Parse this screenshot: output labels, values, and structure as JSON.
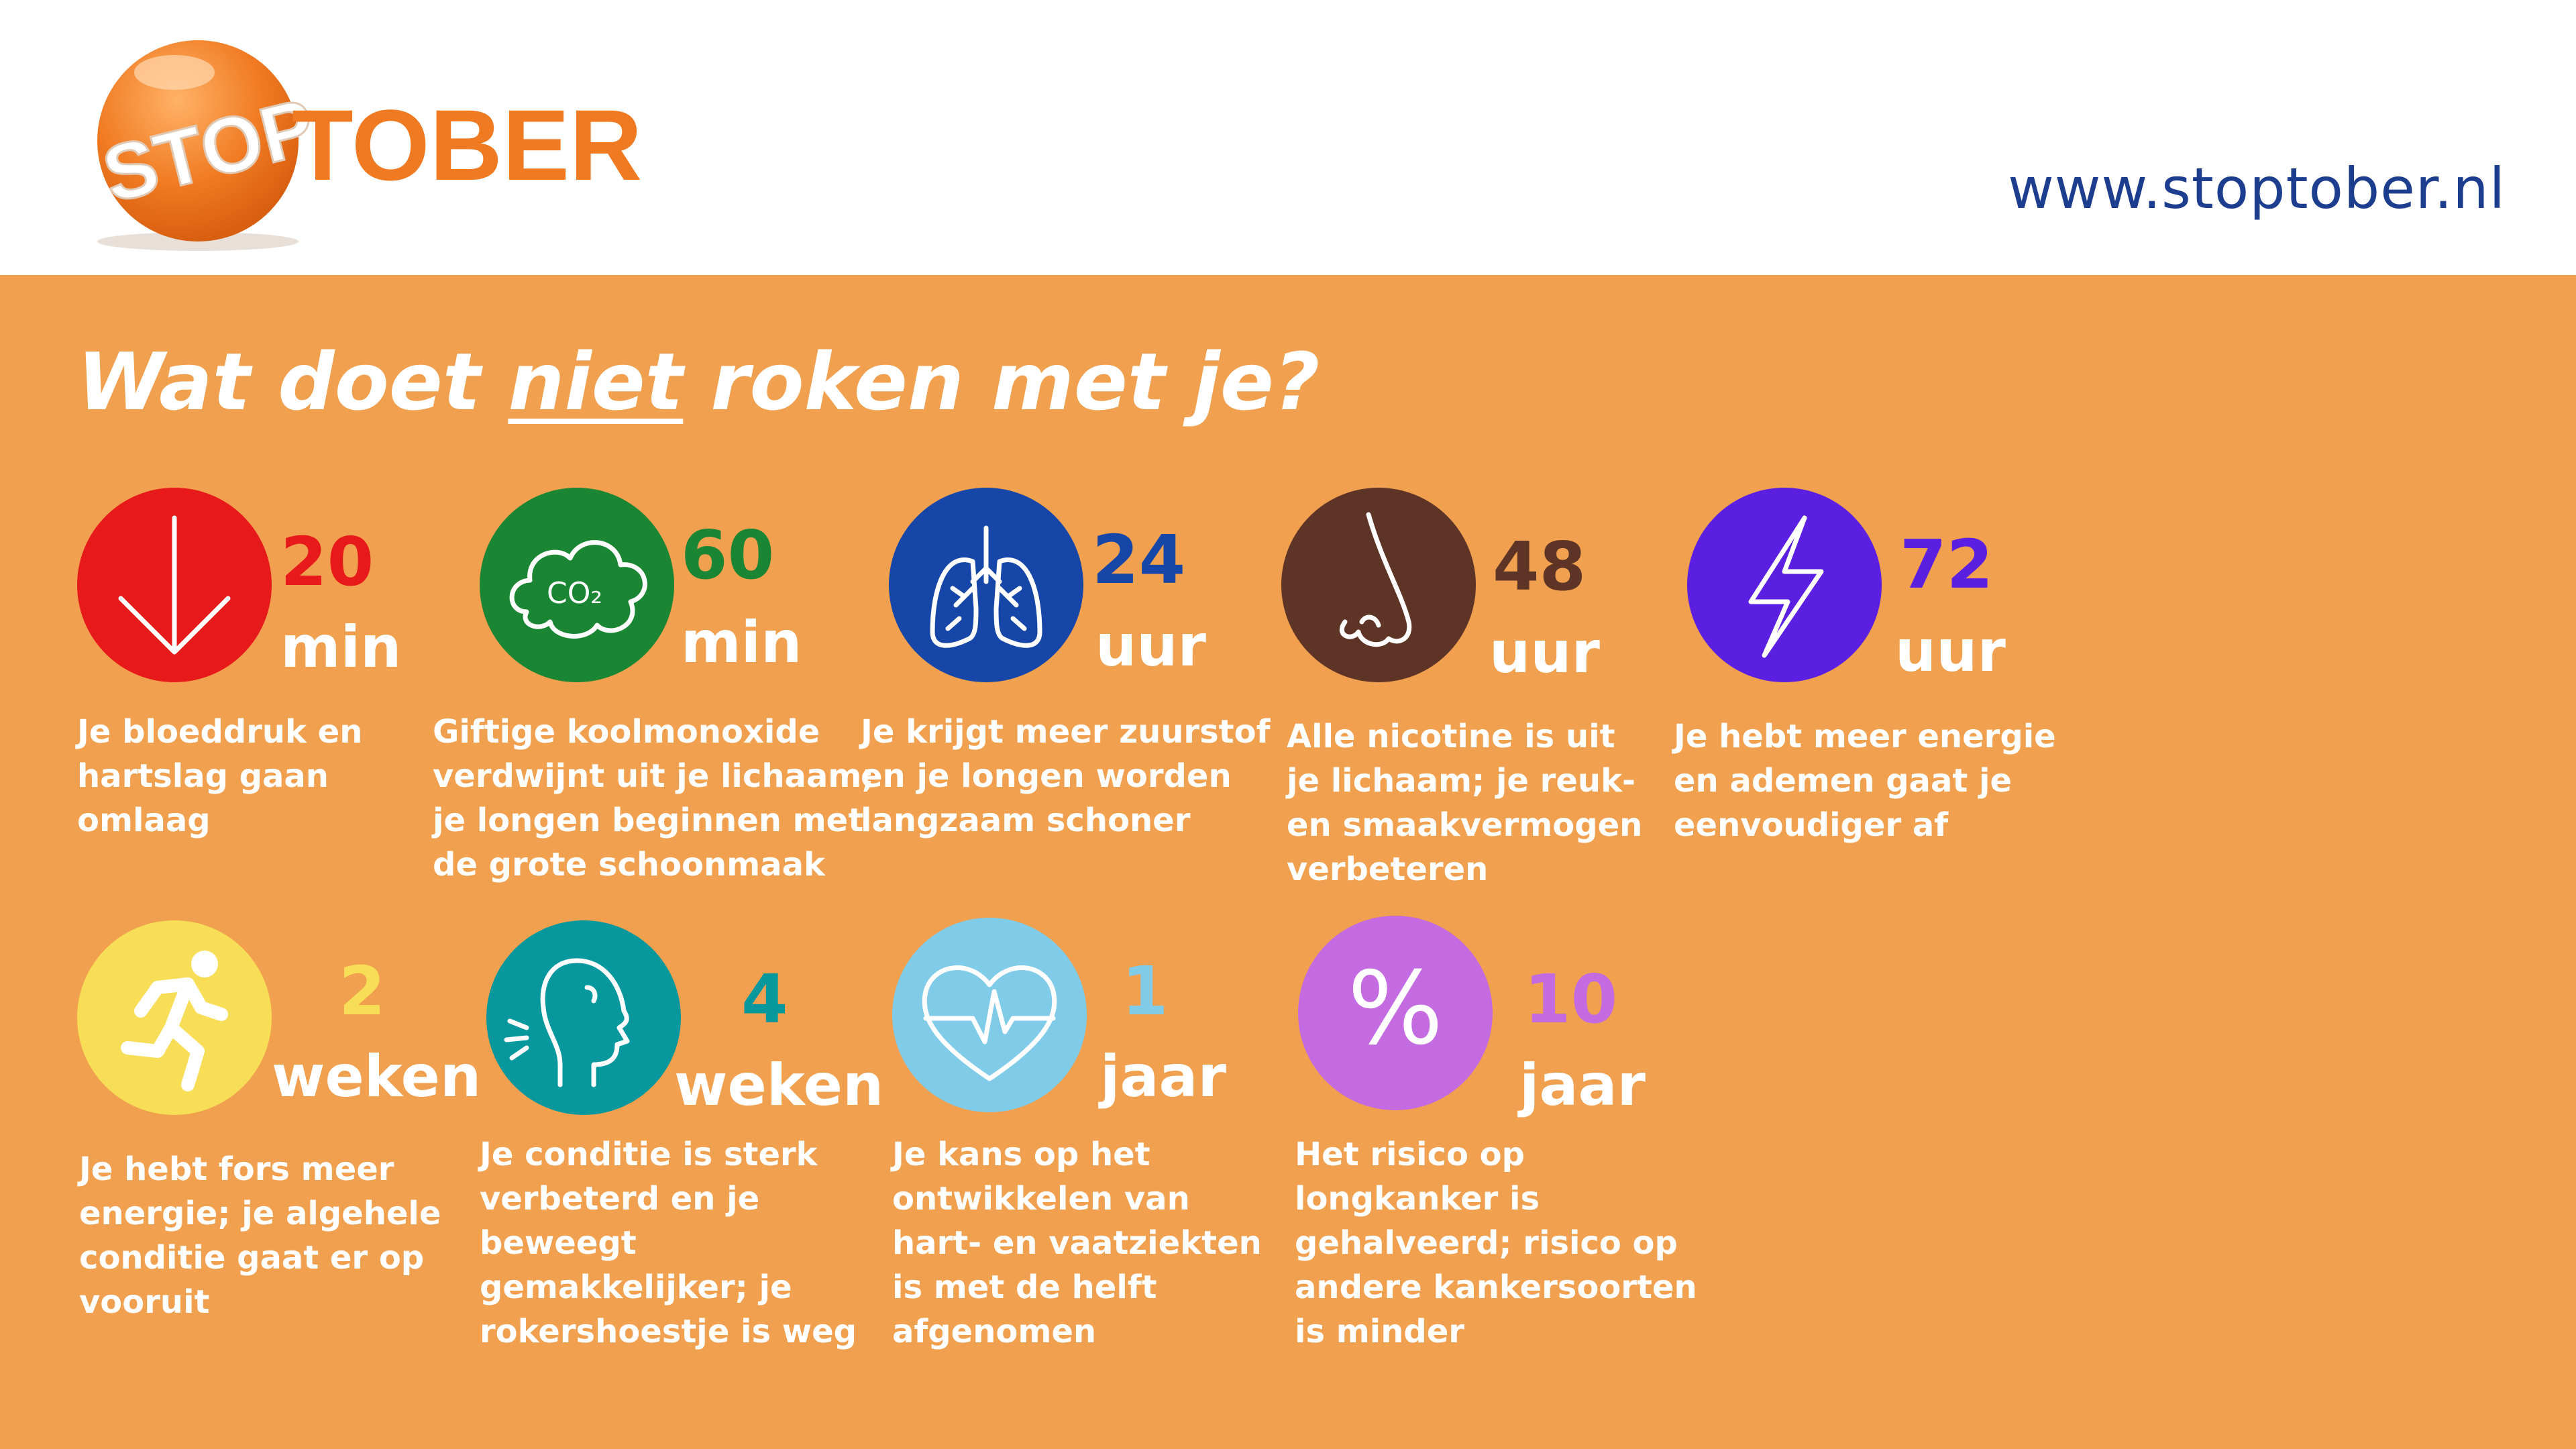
{
  "header": {
    "logo_stop": "STOP",
    "logo_tober": "TOBER",
    "website": "www.stoptober.nl"
  },
  "title": {
    "part1": "Wat doet ",
    "part2": "niet",
    "part3": " roken met je?"
  },
  "milestones": [
    {
      "icon": "arrow-down-icon",
      "color": "#e8191b",
      "number_color": "#e8191b",
      "number": "20",
      "unit": "min",
      "text": "Je bloeddruk en\nhartslag gaan\nomlaag"
    },
    {
      "icon": "co2-cloud-icon",
      "color": "#1a8532",
      "number_color": "#1a8532",
      "number": "60",
      "unit": "min",
      "text": "Giftige koolmonoxide\nverdwijnt uit je lichaam;\nje longen beginnen met\nde grote schoonmaak"
    },
    {
      "icon": "lungs-icon",
      "color": "#1646a8",
      "number_color": "#1646a8",
      "number": "24",
      "unit": "uur",
      "text": "Je krijgt meer zuurstof\nen je longen worden\nlangzaam schoner"
    },
    {
      "icon": "nose-icon",
      "color": "#5e3426",
      "number_color": "#5e3426",
      "number": "48",
      "unit": "uur",
      "text": "Alle nicotine is uit\nje lichaam; je reuk-\nen smaakvermogen\nverbeteren"
    },
    {
      "icon": "lightning-icon",
      "color": "#5b1fe2",
      "number_color": "#5b1fe2",
      "number": "72",
      "unit": "uur",
      "text": "Je hebt meer energie\nen ademen gaat je\neenvoudiger af"
    },
    {
      "icon": "runner-icon",
      "color": "#f8dd56",
      "number_color": "#f8dd56",
      "number": "2",
      "unit": "weken",
      "text": "Je hebt fors meer\nenergie; je algehele\nconditie gaat er op\nvooruit"
    },
    {
      "icon": "breathing-head-icon",
      "color": "#06989d",
      "number_color": "#06989d",
      "number": "4",
      "unit": "weken",
      "text": "Je conditie is sterk\nverbeterd en je\nbeweegt\ngemakkelijker; je\nrokershoestje is weg"
    },
    {
      "icon": "heart-pulse-icon",
      "color": "#80cbe8",
      "number_color": "#80cbe8",
      "number": "1",
      "unit": "jaar",
      "text": "Je kans op het\nontwikkelen van\nhart- en vaatziekten\nis met de helft\nafgenomen"
    },
    {
      "icon": "percent-icon",
      "color": "#c46be2",
      "number_color": "#c46be2",
      "number": "10",
      "unit": "jaar",
      "text": "Het risico op\nlongkanker is\ngehalveerd; risico op\nandere kankersoorten\nis minder"
    }
  ],
  "icon_labels": {
    "co2": "CO₂",
    "percent": "%"
  }
}
